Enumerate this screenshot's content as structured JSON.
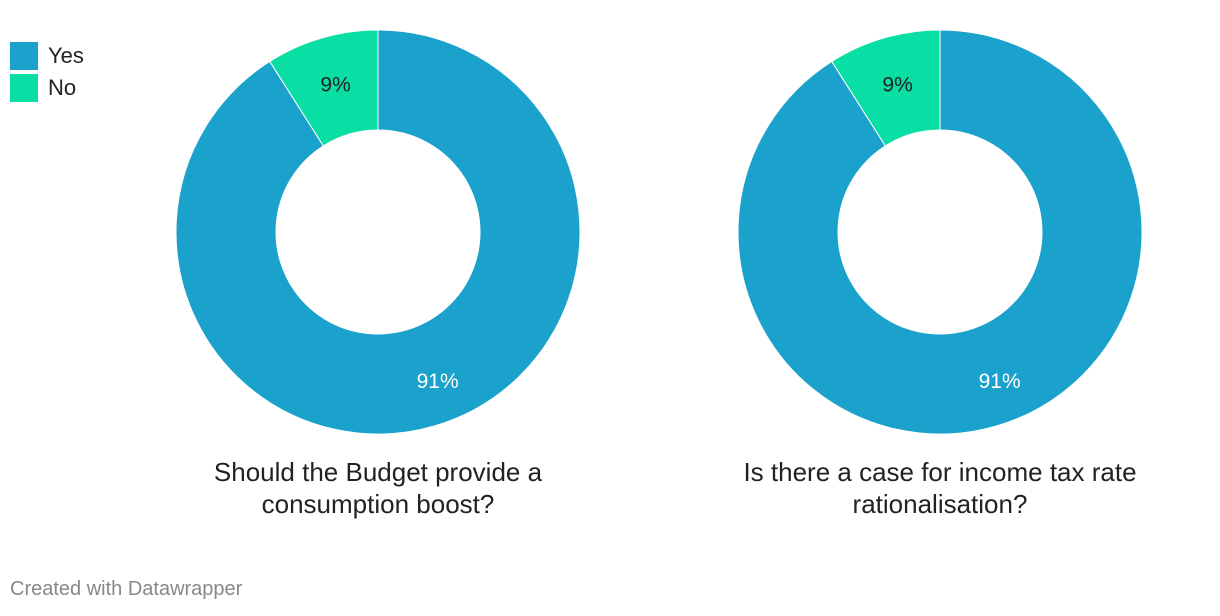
{
  "legend": {
    "items": [
      {
        "label": "Yes",
        "color": "#1aa1cc"
      },
      {
        "label": "No",
        "color": "#09dea5"
      }
    ]
  },
  "chart_data": [
    {
      "type": "pie",
      "variant": "donut",
      "title": "Should the Budget provide a consumption boost?",
      "categories": [
        "Yes",
        "No"
      ],
      "values": [
        91,
        9
      ],
      "value_labels": [
        "91%",
        "9%"
      ],
      "colors": [
        "#1aa1cc",
        "#09dea5"
      ],
      "legend_position": "top-left"
    },
    {
      "type": "pie",
      "variant": "donut",
      "title": "Is there a case for income tax rate rationalisation?",
      "categories": [
        "Yes",
        "No"
      ],
      "values": [
        91,
        9
      ],
      "value_labels": [
        "91%",
        "9%"
      ],
      "colors": [
        "#1aa1cc",
        "#09dea5"
      ],
      "legend_position": "top-left"
    }
  ],
  "footer": {
    "credit": "Created with Datawrapper"
  }
}
